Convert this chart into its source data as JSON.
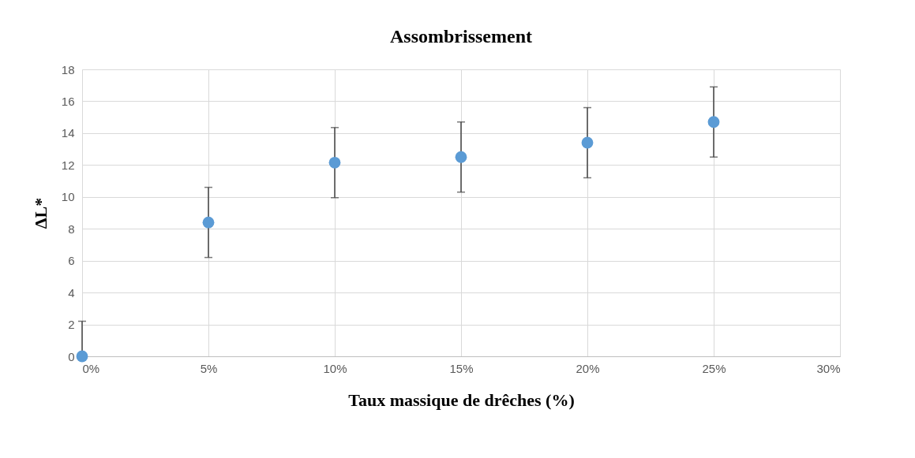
{
  "chart_data": {
    "type": "scatter",
    "title": "Assombrissement",
    "xlabel": "Taux massique de drêches (%)",
    "ylabel": "ΔL*",
    "x": [
      0,
      5,
      10,
      15,
      20,
      25
    ],
    "series": [
      {
        "color": "#5b9bd5",
        "values": [
          0,
          8.4,
          12.15,
          12.5,
          13.4,
          14.7
        ],
        "errors": [
          [
            0,
            2.2
          ],
          2.2,
          2.2,
          2.2,
          2.2,
          2.2
        ]
      }
    ],
    "xlim": [
      0,
      30
    ],
    "xticks": [
      {
        "value": 0,
        "label": "0%"
      },
      {
        "value": 5,
        "label": "5%"
      },
      {
        "value": 10,
        "label": "10%"
      },
      {
        "value": 15,
        "label": "15%"
      },
      {
        "value": 20,
        "label": "20%"
      },
      {
        "value": 25,
        "label": "25%"
      },
      {
        "value": 30,
        "label": "30%"
      }
    ],
    "ylim": [
      0,
      18
    ],
    "yticks": [
      0,
      2,
      4,
      6,
      8,
      10,
      12,
      14,
      16,
      18
    ],
    "grid": true,
    "marker": "circle"
  }
}
